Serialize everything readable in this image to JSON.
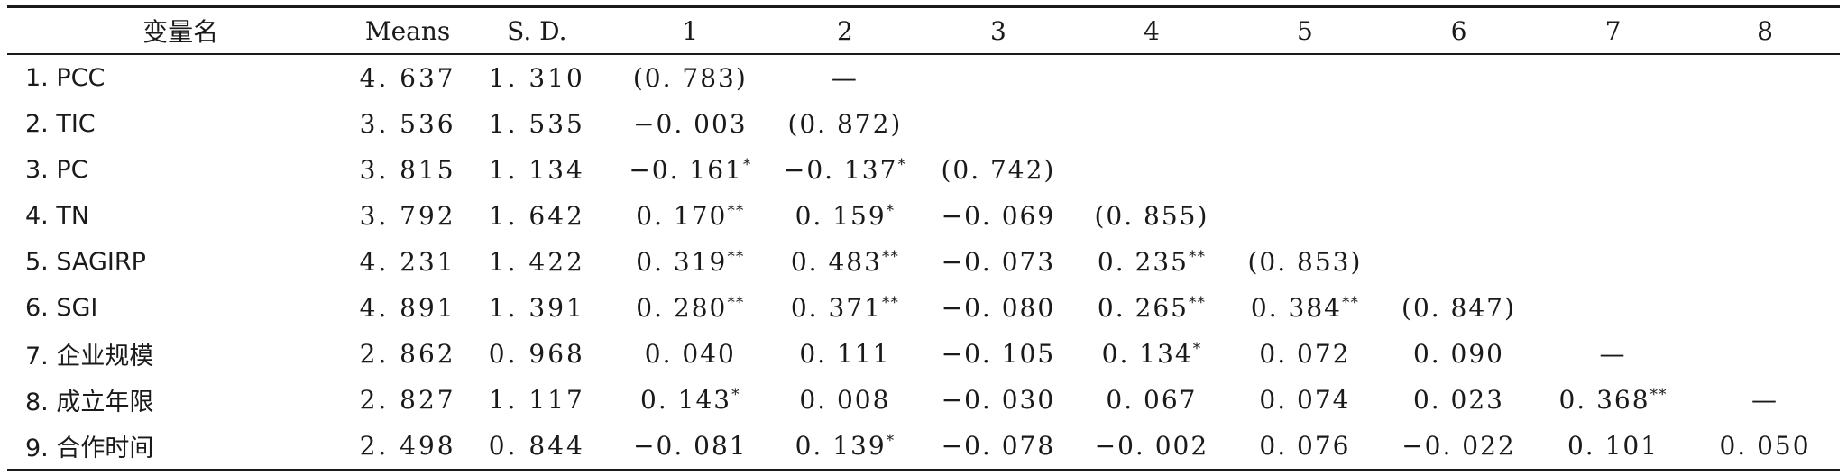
{
  "table": {
    "headers": [
      "变量名",
      "Means",
      "S. D.",
      "1",
      "2",
      "3",
      "4",
      "5",
      "6",
      "7",
      "8"
    ],
    "rows": [
      {
        "label": "1. PCC",
        "mean": "4. 637",
        "sd": "1. 310",
        "cells": [
          "(0. 783)",
          "—",
          "",
          "",
          "",
          "",
          "",
          ""
        ],
        "sups": [
          "",
          "",
          "",
          "",
          "",
          "",
          "",
          ""
        ]
      },
      {
        "label": "2. TIC",
        "mean": "3. 536",
        "sd": "1. 535",
        "cells": [
          "−0. 003",
          "(0. 872)",
          "",
          "",
          "",
          "",
          "",
          ""
        ],
        "sups": [
          "",
          "",
          "",
          "",
          "",
          "",
          "",
          ""
        ]
      },
      {
        "label": "3. PC",
        "mean": "3. 815",
        "sd": "1. 134",
        "cells": [
          "−0. 161",
          "−0. 137",
          "(0. 742)",
          "",
          "",
          "",
          "",
          ""
        ],
        "sups": [
          "*",
          "*",
          "",
          "",
          "",
          "",
          "",
          ""
        ]
      },
      {
        "label": "4. TN",
        "mean": "3. 792",
        "sd": "1. 642",
        "cells": [
          "0. 170",
          "0. 159",
          "−0. 069",
          "(0. 855)",
          "",
          "",
          "",
          ""
        ],
        "sups": [
          "**",
          "*",
          "",
          "",
          "",
          "",
          "",
          ""
        ]
      },
      {
        "label": "5. SAGIRP",
        "mean": "4. 231",
        "sd": "1. 422",
        "cells": [
          "0. 319",
          "0. 483",
          "−0. 073",
          "0. 235",
          "(0. 853)",
          "",
          "",
          ""
        ],
        "sups": [
          "**",
          "**",
          "",
          "**",
          "",
          "",
          "",
          ""
        ]
      },
      {
        "label": "6. SGI",
        "mean": "4. 891",
        "sd": "1. 391",
        "cells": [
          "0. 280",
          "0. 371",
          "−0. 080",
          "0. 265",
          "0. 384",
          "(0. 847)",
          "",
          ""
        ],
        "sups": [
          "**",
          "**",
          "",
          "**",
          "**",
          "",
          "",
          ""
        ]
      },
      {
        "label": "7. 企业规模",
        "mean": "2. 862",
        "sd": "0. 968",
        "cells": [
          "0. 040",
          "0. 111",
          "−0. 105",
          "0. 134",
          "0. 072",
          "0. 090",
          "—",
          ""
        ],
        "sups": [
          "",
          "",
          "",
          "*",
          "",
          "",
          "",
          ""
        ]
      },
      {
        "label": "8. 成立年限",
        "mean": "2. 827",
        "sd": "1. 117",
        "cells": [
          "0. 143",
          "0. 008",
          "−0. 030",
          "0. 067",
          "0. 074",
          "0. 023",
          "0. 368",
          "—"
        ],
        "sups": [
          "*",
          "",
          "",
          "",
          "",
          "",
          "**",
          ""
        ]
      },
      {
        "label": "9. 合作时间",
        "mean": "2. 498",
        "sd": "0. 844",
        "cells": [
          "−0. 081",
          "0. 139",
          "−0. 078",
          "−0. 002",
          "0. 076",
          "−0. 022",
          "0. 101",
          "0. 050"
        ],
        "sups": [
          "",
          "*",
          "",
          "",
          "",
          "",
          "",
          ""
        ]
      }
    ]
  }
}
